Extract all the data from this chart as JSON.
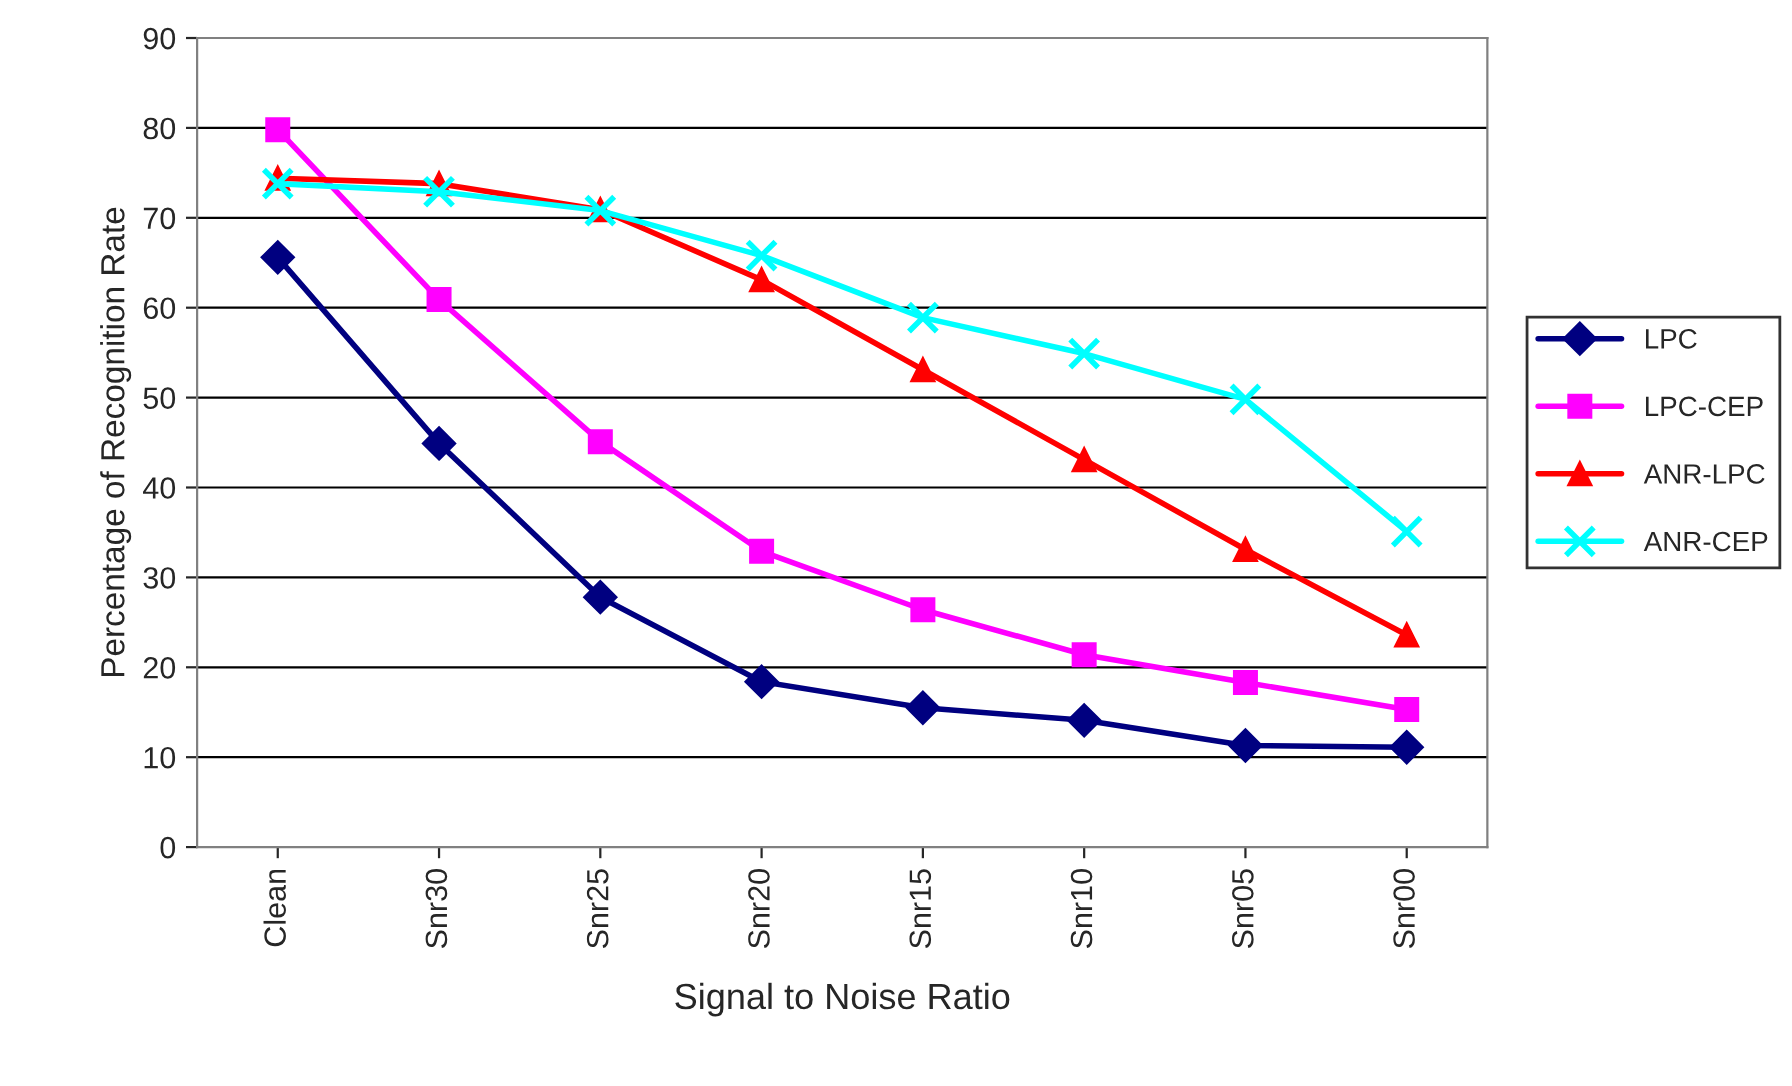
{
  "chart_data": {
    "type": "line",
    "xlabel": "Signal to Noise Ratio",
    "ylabel": "Percentage of Recognition Rate",
    "categories": [
      "Clean",
      "Snr30",
      "Snr25",
      "Snr20",
      "Snr15",
      "Snr10",
      "Snr05",
      "Snr00"
    ],
    "series": [
      {
        "name": "LPC",
        "color": "#000080",
        "marker": "diamond",
        "values": [
          65.6,
          44.9,
          27.8,
          18.4,
          15.5,
          14.1,
          11.3,
          11.1
        ]
      },
      {
        "name": "LPC-CEP",
        "color": "#ff00ff",
        "marker": "square",
        "values": [
          79.8,
          60.9,
          45.1,
          32.9,
          26.4,
          21.4,
          18.3,
          15.3
        ]
      },
      {
        "name": "ANR-LPC",
        "color": "#ff0000",
        "marker": "triangle",
        "values": [
          74.4,
          73.8,
          70.9,
          63.1,
          53.1,
          43.1,
          33.1,
          23.6
        ]
      },
      {
        "name": "ANR-CEP",
        "color": "#00ffff",
        "marker": "cross",
        "values": [
          73.8,
          72.9,
          70.8,
          65.8,
          58.9,
          54.9,
          49.8,
          35.1
        ]
      }
    ],
    "ylim": [
      0,
      90
    ],
    "yticks": [
      0,
      10,
      20,
      30,
      40,
      50,
      60,
      70,
      80,
      90
    ],
    "grid": "y",
    "legend": "right",
    "line_style": "solid"
  }
}
